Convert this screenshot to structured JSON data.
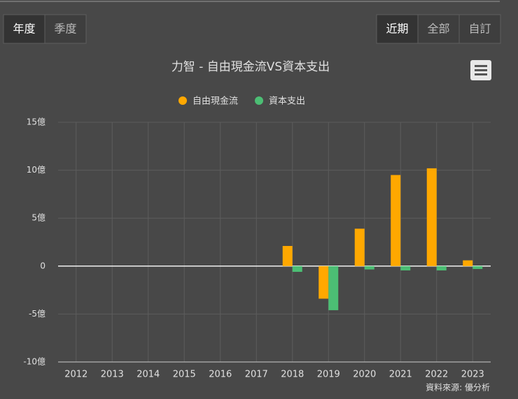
{
  "period_buttons": [
    "年度",
    "季度"
  ],
  "range_buttons": [
    "近期",
    "全部",
    "自訂"
  ],
  "chart_data": {
    "type": "bar",
    "title": "力智 - 自由現金流VS資本支出",
    "categories": [
      "2012",
      "2013",
      "2014",
      "2015",
      "2016",
      "2017",
      "2018",
      "2019",
      "2020",
      "2021",
      "2022",
      "2023"
    ],
    "series": [
      {
        "name": "自由現金流",
        "color": "#ffa800",
        "values": [
          null,
          null,
          null,
          null,
          null,
          null,
          2.1,
          -3.4,
          3.9,
          9.5,
          10.2,
          0.6
        ]
      },
      {
        "name": "資本支出",
        "color": "#4cbe74",
        "values": [
          null,
          null,
          null,
          null,
          null,
          null,
          -0.6,
          -4.6,
          -0.35,
          -0.45,
          -0.45,
          -0.3
        ]
      }
    ],
    "ylim": [
      -10,
      15
    ],
    "yticks": [
      {
        "value": -10,
        "label": "-10億"
      },
      {
        "value": -5,
        "label": "-5億"
      },
      0,
      {
        "value": 5,
        "label": "5億"
      },
      {
        "value": 10,
        "label": "10億"
      },
      {
        "value": 15,
        "label": "15億"
      }
    ],
    "grid": true,
    "source": "資料來源: 優分析"
  }
}
